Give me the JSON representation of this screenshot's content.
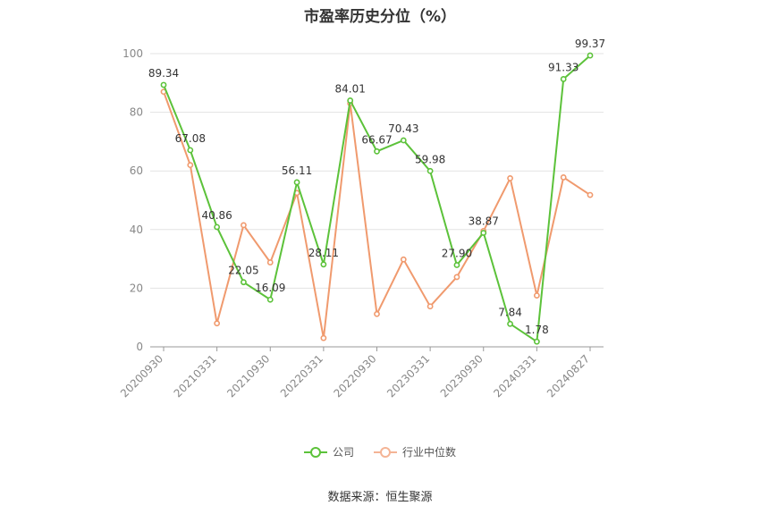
{
  "title": "市盈率历史分位（%）",
  "source": "数据来源：恒生聚源",
  "colors": {
    "company": "#5cc23a",
    "industry": "#f09a6e",
    "grid": "#e3e3e3",
    "axis": "#999999"
  },
  "chart_data": {
    "type": "line",
    "title": "市盈率历史分位（%）",
    "ylim": [
      0,
      100
    ],
    "yticks": [
      0,
      20,
      40,
      60,
      80,
      100
    ],
    "x_tick_labels": [
      "20200930",
      "20210331",
      "20210930",
      "20220331",
      "20220930",
      "20230331",
      "20230930",
      "20240331",
      "20240827"
    ],
    "grid": true,
    "legend_position": "bottom-center",
    "series": [
      {
        "name": "公司",
        "values": [
          89.34,
          67.08,
          40.86,
          22.05,
          16.09,
          56.11,
          28.11,
          84.01,
          66.67,
          70.43,
          59.98,
          27.9,
          38.87,
          7.84,
          1.78,
          91.33,
          99.37
        ],
        "labels": [
          "89.34",
          "67.08",
          "40.86",
          "22.05",
          "16.09",
          "56.11",
          "28.11",
          "84.01",
          "66.67",
          "70.43",
          "59.98",
          "27.90",
          "38.87",
          "7.84",
          "1.78",
          "91.33",
          "99.37"
        ]
      },
      {
        "name": "行业中位数",
        "values": [
          87,
          62,
          8,
          41.5,
          28.8,
          52.5,
          3,
          83,
          11.2,
          29.8,
          13.8,
          23.8,
          39.5,
          57.5,
          17.5,
          57.8,
          51.8
        ]
      }
    ]
  }
}
